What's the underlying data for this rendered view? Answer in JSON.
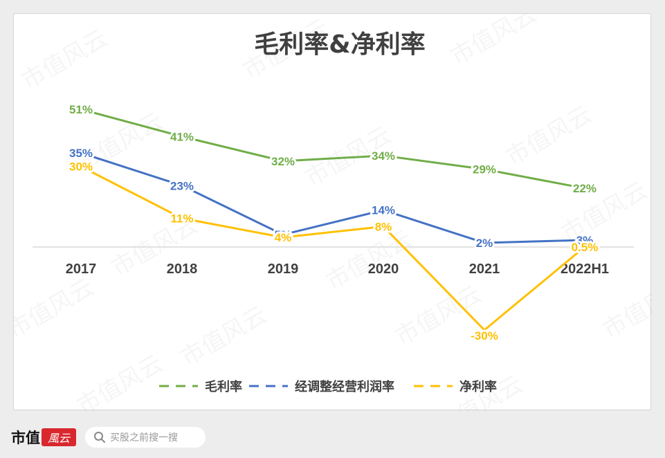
{
  "chart_data": {
    "type": "line",
    "title": "毛利率&净利率",
    "categories": [
      "2017",
      "2018",
      "2019",
      "2020",
      "2021",
      "2022H1"
    ],
    "series": [
      {
        "name": "毛利率",
        "color": "#70ad47",
        "values": [
          51,
          41,
          32,
          34,
          29,
          22
        ],
        "labels": [
          "51%",
          "41%",
          "32%",
          "34%",
          "29%",
          "22%"
        ]
      },
      {
        "name": "经调整经营利润率",
        "color": "#4472c4",
        "values": [
          35,
          23,
          5,
          14,
          2,
          3
        ],
        "labels": [
          "35%",
          "23%",
          "5%",
          "14%",
          "2%",
          "3%"
        ]
      },
      {
        "name": "净利率",
        "color": "#ffc000",
        "values": [
          30,
          11,
          4,
          8,
          -30,
          0.5
        ],
        "labels": [
          "30%",
          "11%",
          "4%",
          "8%",
          "-30%",
          "0.5%"
        ]
      }
    ],
    "ylim": [
      -30,
      51
    ],
    "grid": false,
    "legend_position": "bottom",
    "legend_style": "dashed"
  },
  "watermark": "市值风云",
  "footer": {
    "brand": "市值",
    "brand_badge": "風云",
    "search_placeholder": "买股之前搜一搜"
  }
}
